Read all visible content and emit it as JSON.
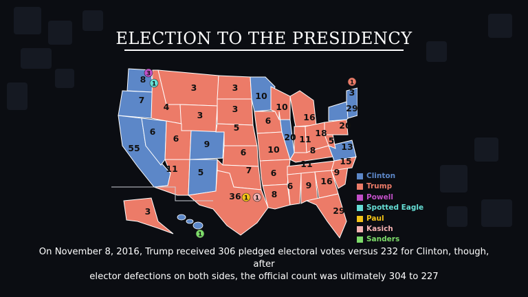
{
  "title": "ELECTION TO THE PRESIDENCY",
  "caption_line1": "On November 8, 2016, Trump received 306 pledged electoral votes versus 232 for Clinton, though, after",
  "caption_line2": "elector defections on both sides, the official count was ultimately 304 to 227",
  "colors": {
    "clinton": "#5c87c8",
    "trump": "#ec7b68",
    "background": "#0b0d12"
  },
  "legend": [
    {
      "key": "clinton",
      "label": "Clinton",
      "color": "#5c87c8"
    },
    {
      "key": "trump",
      "label": "Trump",
      "color": "#ec7b68"
    },
    {
      "key": "powell",
      "label": "Powell",
      "color": "#c250c9"
    },
    {
      "key": "spotted_eagle",
      "label": "Spotted Eagle",
      "color": "#66dfd6"
    },
    {
      "key": "paul",
      "label": "Paul",
      "color": "#f2c318"
    },
    {
      "key": "kasich",
      "label": "Kasich",
      "color": "#f4b2b2"
    },
    {
      "key": "sanders",
      "label": "Sanders",
      "color": "#7ddc6a"
    }
  ],
  "state_votes": [
    {
      "state": "WA",
      "votes": "8"
    },
    {
      "state": "OR",
      "votes": "7"
    },
    {
      "state": "CA",
      "votes": "55"
    },
    {
      "state": "NV",
      "votes": "6"
    },
    {
      "state": "ID",
      "votes": "4"
    },
    {
      "state": "MT",
      "votes": "3"
    },
    {
      "state": "WY",
      "votes": "3"
    },
    {
      "state": "UT",
      "votes": "6"
    },
    {
      "state": "CO",
      "votes": "9"
    },
    {
      "state": "AZ",
      "votes": "11"
    },
    {
      "state": "NM",
      "votes": "5"
    },
    {
      "state": "ND",
      "votes": "3"
    },
    {
      "state": "SD",
      "votes": "3"
    },
    {
      "state": "NE",
      "votes": "5"
    },
    {
      "state": "KS",
      "votes": "6"
    },
    {
      "state": "OK",
      "votes": "7"
    },
    {
      "state": "TX",
      "votes": "36"
    },
    {
      "state": "MN",
      "votes": "10"
    },
    {
      "state": "IA",
      "votes": "6"
    },
    {
      "state": "MO",
      "votes": "10"
    },
    {
      "state": "AR",
      "votes": "6"
    },
    {
      "state": "LA",
      "votes": "8"
    },
    {
      "state": "WI",
      "votes": "10"
    },
    {
      "state": "IL",
      "votes": "20"
    },
    {
      "state": "MI",
      "votes": "16"
    },
    {
      "state": "IN",
      "votes": "11"
    },
    {
      "state": "OH",
      "votes": "18"
    },
    {
      "state": "KY",
      "votes": "8"
    },
    {
      "state": "TN",
      "votes": "11"
    },
    {
      "state": "MS",
      "votes": "6"
    },
    {
      "state": "AL",
      "votes": "9"
    },
    {
      "state": "GA",
      "votes": "16"
    },
    {
      "state": "FL",
      "votes": "29"
    },
    {
      "state": "SC",
      "votes": "9"
    },
    {
      "state": "NC",
      "votes": "15"
    },
    {
      "state": "VA",
      "votes": "13"
    },
    {
      "state": "WV",
      "votes": "5"
    },
    {
      "state": "PA",
      "votes": "20"
    },
    {
      "state": "NY",
      "votes": "29"
    },
    {
      "state": "NE_REGION",
      "votes": "3"
    },
    {
      "state": "AK",
      "votes": "3"
    }
  ],
  "faithless_badges": [
    {
      "label": "3",
      "candidate": "powell"
    },
    {
      "label": "1",
      "candidate": "spotted_eagle"
    },
    {
      "label": "1",
      "candidate": "paul"
    },
    {
      "label": "1",
      "candidate": "kasich"
    },
    {
      "label": "1",
      "candidate": "sanders"
    },
    {
      "label": "1",
      "candidate": "trump"
    }
  ]
}
